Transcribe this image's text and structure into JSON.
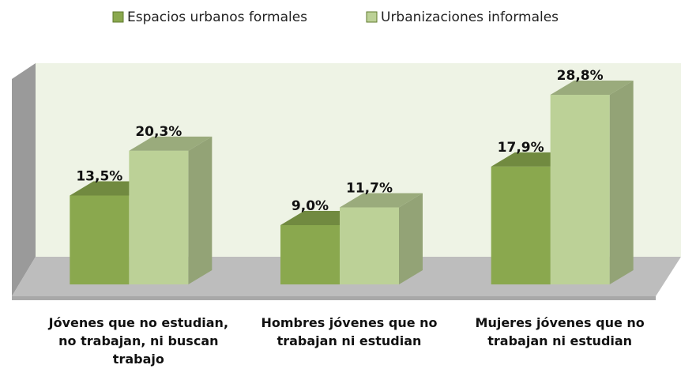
{
  "chart_data": {
    "type": "bar3d",
    "categories": [
      "Jóvenes que no estudian, no trabajan, ni buscan trabajo",
      "Hombres jóvenes que no trabajan ni estudian",
      "Mujeres jóvenes que no trabajan ni estudian"
    ],
    "series": [
      {
        "name": "Espacios urbanos formales",
        "color": "#8aa84e",
        "values": [
          13.5,
          9.0,
          17.9
        ],
        "value_labels": [
          "13,5%",
          "9,0%",
          "17,9%"
        ]
      },
      {
        "name": "Urbanizaciones informales",
        "color": "#bcd197",
        "values": [
          20.3,
          11.7,
          28.8
        ],
        "value_labels": [
          "20,3%",
          "11,7%",
          "28,8%"
        ]
      }
    ],
    "ylim": [
      0,
      36
    ],
    "legend": "top"
  }
}
